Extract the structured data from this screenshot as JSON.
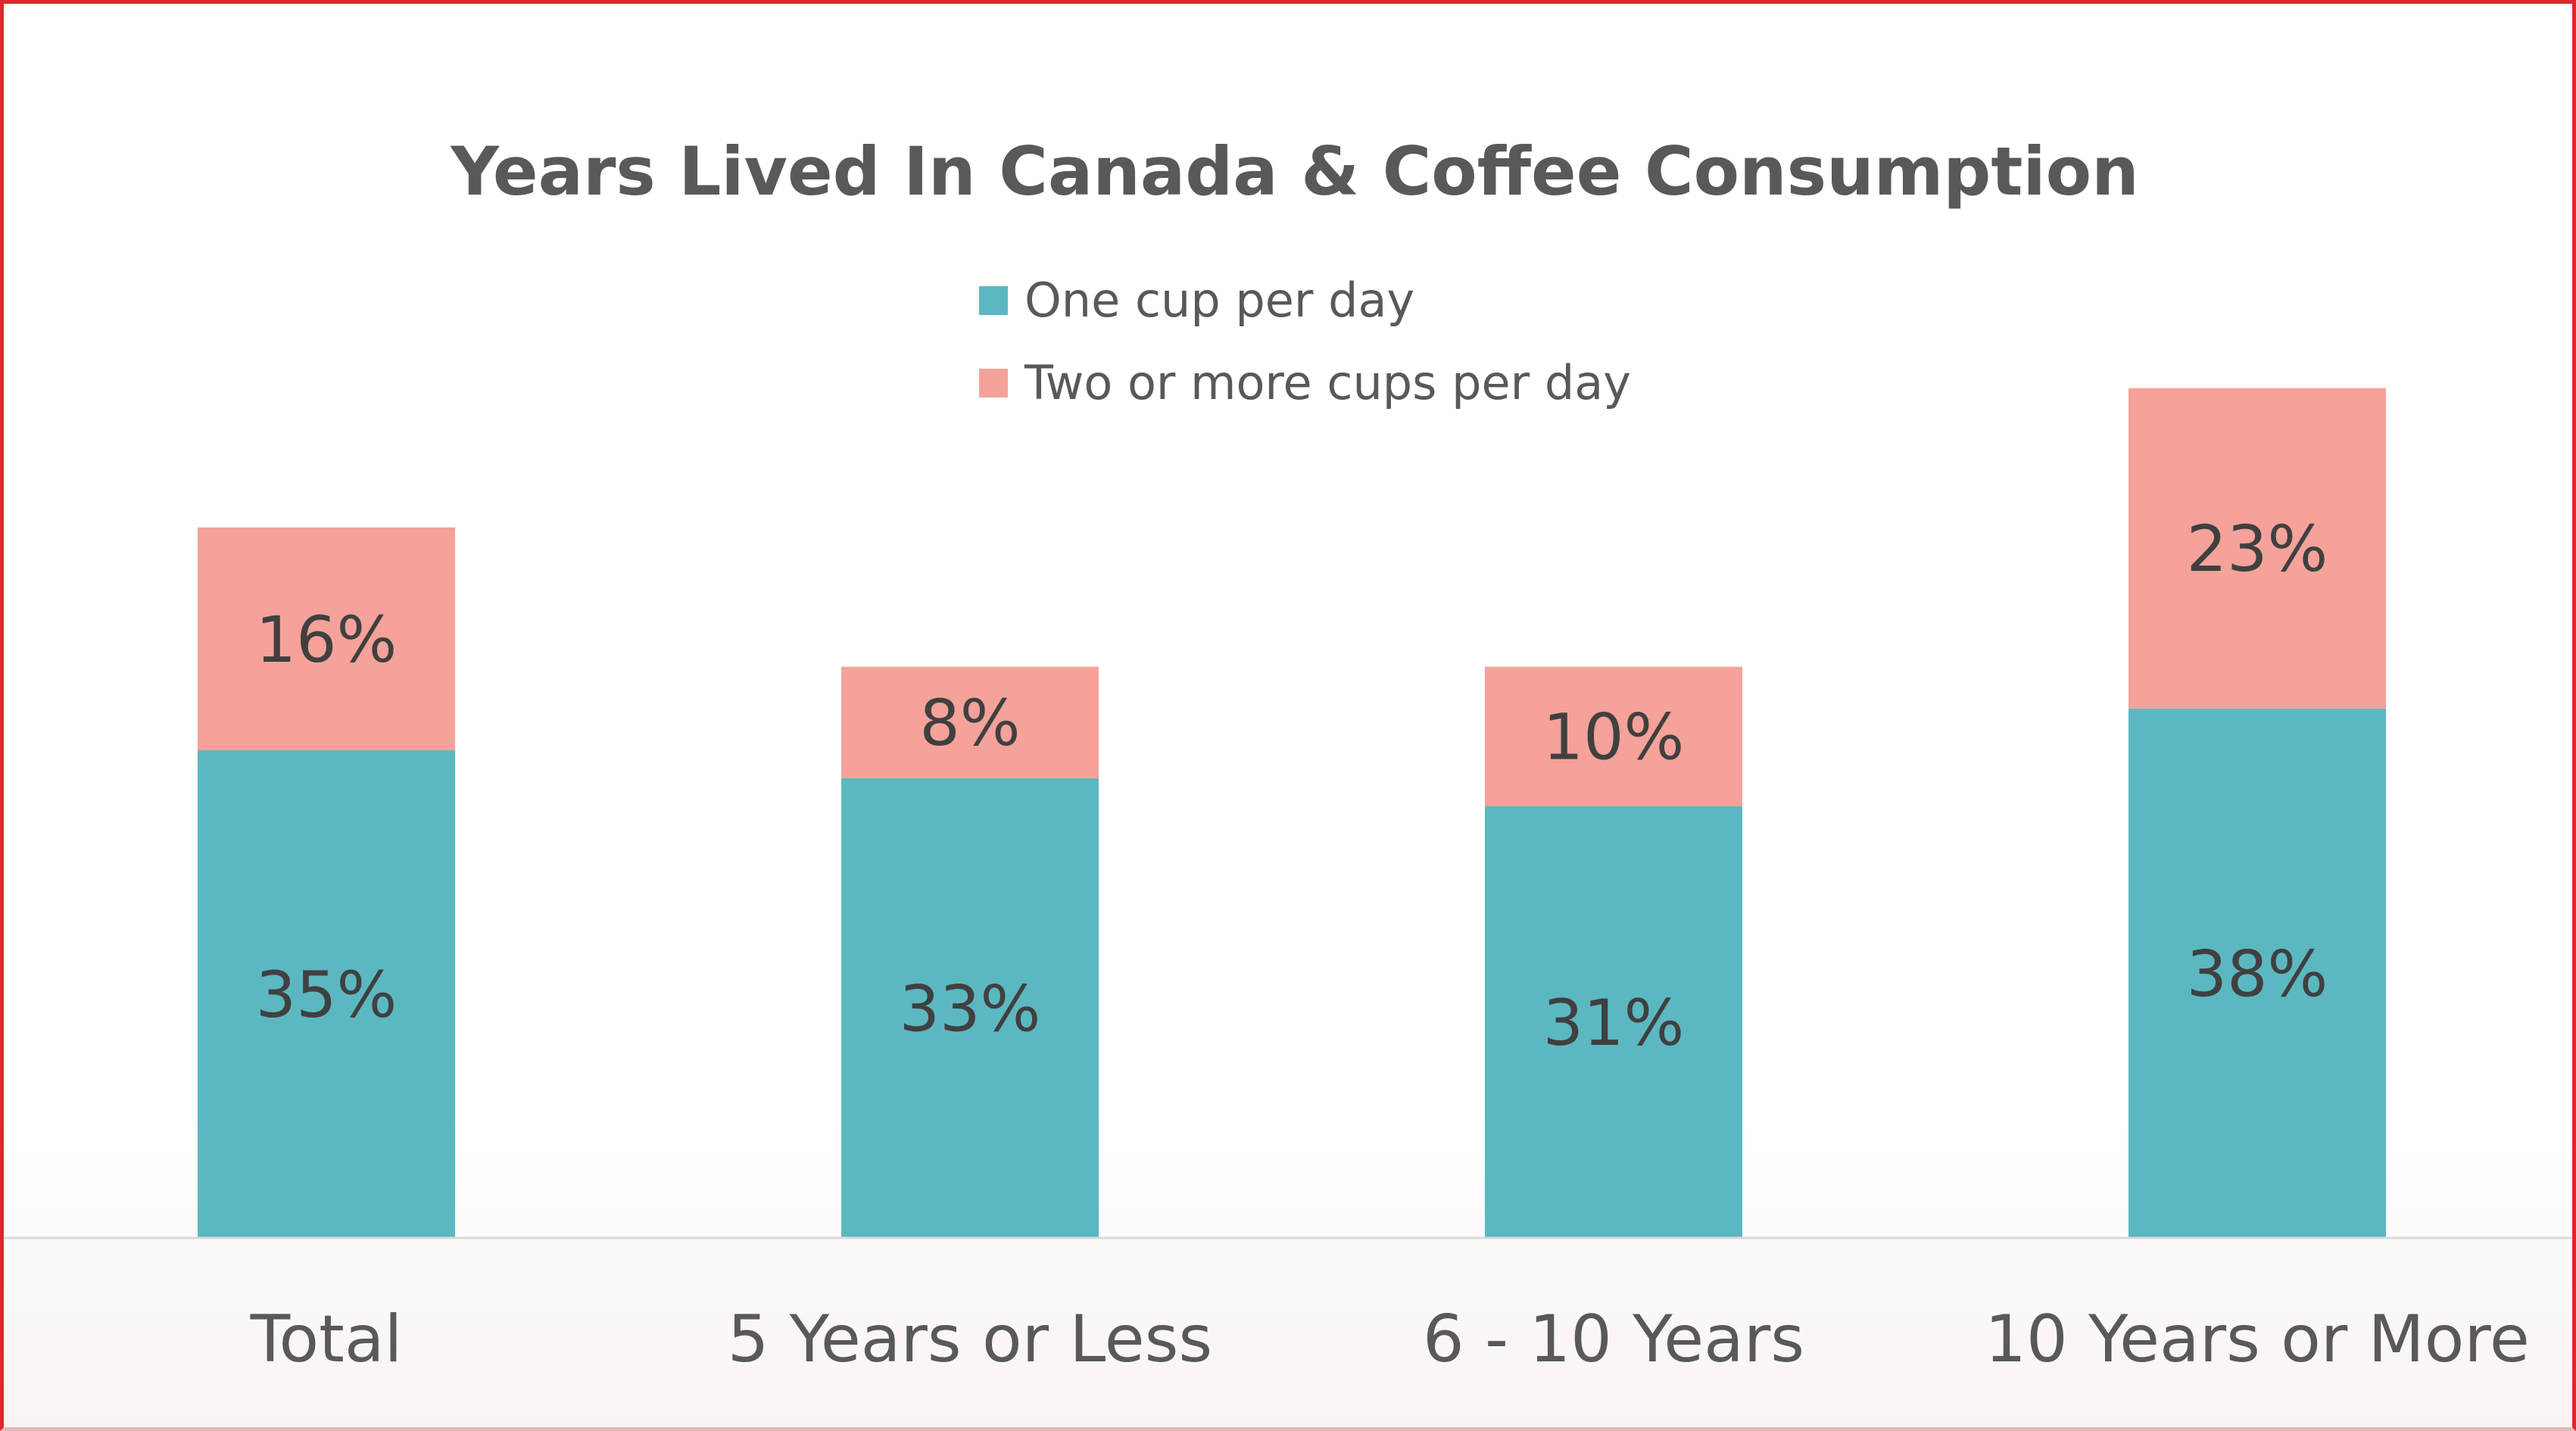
{
  "colors": {
    "one_cup": "#5bb8c1",
    "two_plus": "#f4a29a",
    "text": "#595959",
    "axis": "#d9d9d9"
  },
  "chart_data": {
    "type": "bar",
    "stacked": true,
    "title": "Years Lived In Canada & Coffee Consumption",
    "xlabel": "",
    "ylabel": "",
    "ylim": [
      0,
      70
    ],
    "grid": false,
    "legend_position": "top-center",
    "categories": [
      "Total",
      "5 Years or Less",
      "6 - 10 Years",
      "10 Years or More"
    ],
    "series": [
      {
        "name": "One cup per day",
        "color": "#5bb8c1",
        "values": [
          35,
          33,
          31,
          38
        ],
        "labels": [
          "35%",
          "33%",
          "31%",
          "38%"
        ]
      },
      {
        "name": "Two or more cups per day",
        "color": "#f4a29a",
        "values": [
          16,
          8,
          10,
          23
        ],
        "labels": [
          "16%",
          "8%",
          "10%",
          "23%"
        ]
      }
    ]
  }
}
